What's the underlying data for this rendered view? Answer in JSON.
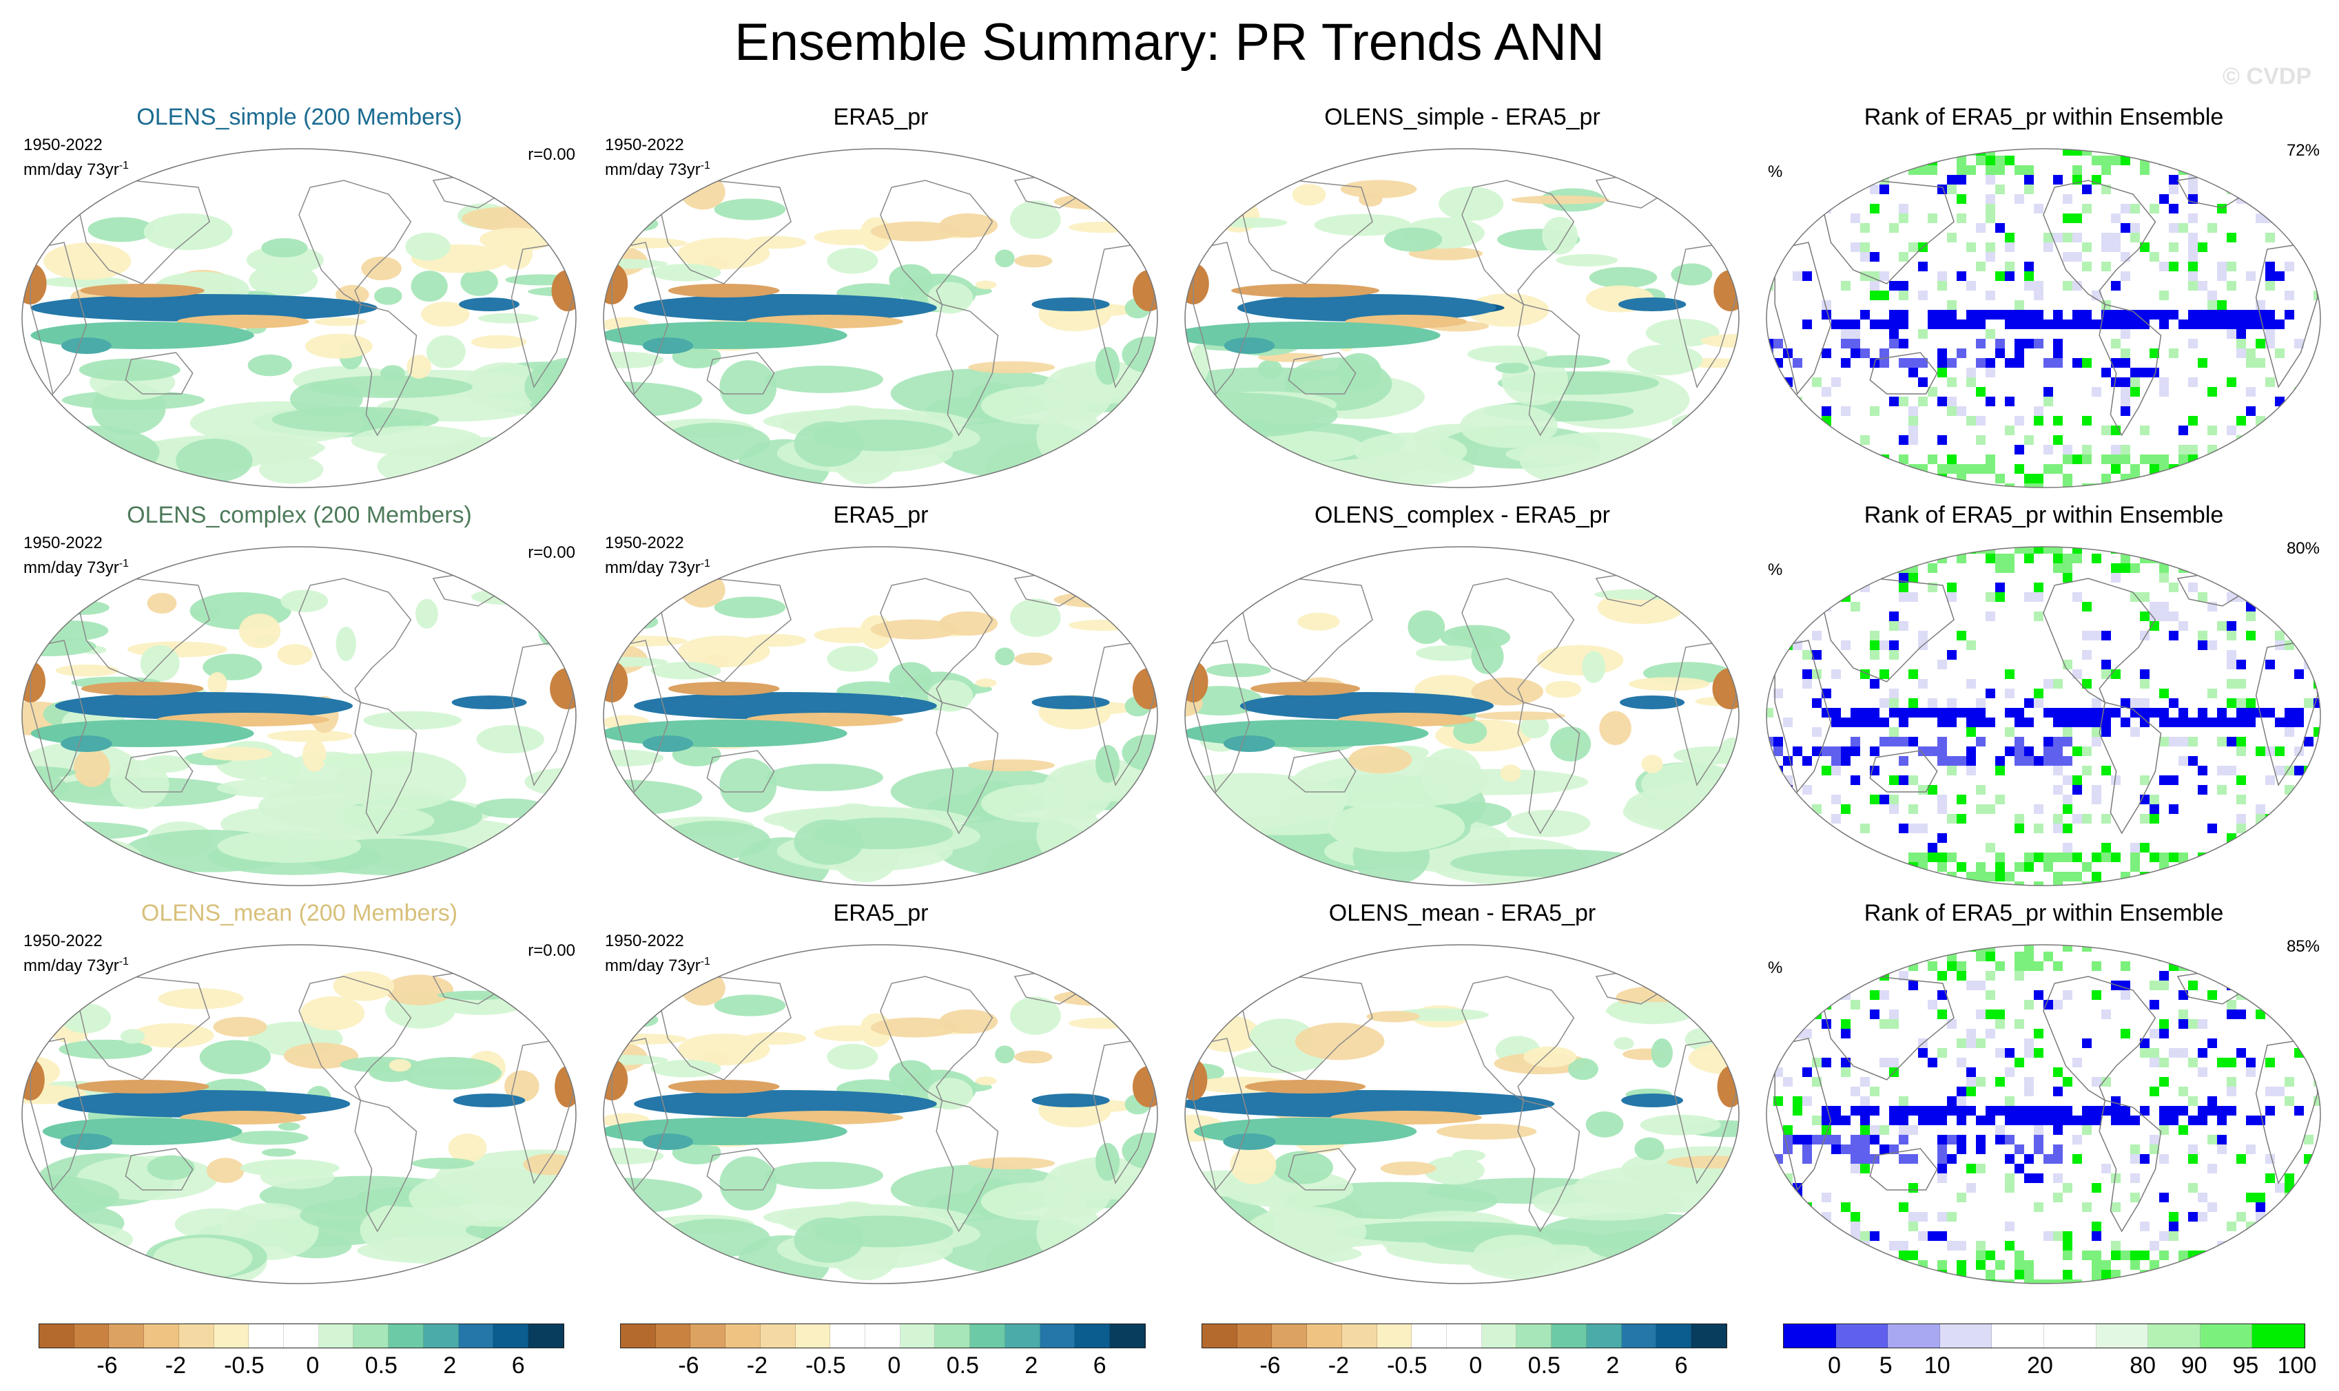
{
  "title": "Ensemble Summary: PR Trends ANN",
  "watermark": "© CVDP",
  "colors": {
    "olens_simple": "#1a6b91",
    "olens_complex": "#4d7a5a",
    "olens_mean": "#d8c07a",
    "land_outline": "#888888",
    "diverging_palette": [
      "#b46a2d",
      "#c98240",
      "#dca262",
      "#efc382",
      "#f4d9a3",
      "#fbf0c2",
      "#ffffff",
      "#ffffff",
      "#d3f5d3",
      "#a6e6b8",
      "#6ccaa6",
      "#4aaba8",
      "#2477a8",
      "#0b5c8f",
      "#083d5e"
    ],
    "rank_palette": [
      "#0000ee",
      "#6060ee",
      "#a8a8f2",
      "#dcdcf6",
      "#ffffff",
      "#ffffff",
      "#e3f8e3",
      "#b3f2b3",
      "#7cf07c",
      "#00ee00"
    ]
  },
  "panels": [
    {
      "title": "OLENS_simple (200 Members)",
      "title_color_key": "olens_simple",
      "period": "1950-2022",
      "units": "mm/day 73yr",
      "unit_sup": "-1",
      "corr": "r=0.00",
      "kind": "trend",
      "pattern": 1
    },
    {
      "title": "ERA5_pr",
      "title_color_key": null,
      "period": "1950-2022",
      "units": "mm/day 73yr",
      "unit_sup": "-1",
      "corr": "",
      "kind": "trend",
      "pattern": 2
    },
    {
      "title": "OLENS_simple - ERA5_pr",
      "title_color_key": null,
      "period": "",
      "units": "",
      "unit_sup": "",
      "corr": "",
      "kind": "trend",
      "pattern": 3
    },
    {
      "title": "Rank of ERA5_pr within Ensemble",
      "title_color_key": null,
      "period": "",
      "units": "%",
      "unit_sup": "",
      "corr": "72%",
      "kind": "rank",
      "pattern": 4
    },
    {
      "title": "OLENS_complex (200 Members)",
      "title_color_key": "olens_complex",
      "period": "1950-2022",
      "units": "mm/day 73yr",
      "unit_sup": "-1",
      "corr": "r=0.00",
      "kind": "trend",
      "pattern": 5
    },
    {
      "title": "ERA5_pr",
      "title_color_key": null,
      "period": "1950-2022",
      "units": "mm/day 73yr",
      "unit_sup": "-1",
      "corr": "",
      "kind": "trend",
      "pattern": 2
    },
    {
      "title": "OLENS_complex - ERA5_pr",
      "title_color_key": null,
      "period": "",
      "units": "",
      "unit_sup": "",
      "corr": "",
      "kind": "trend",
      "pattern": 6
    },
    {
      "title": "Rank of ERA5_pr within Ensemble",
      "title_color_key": null,
      "period": "",
      "units": "%",
      "unit_sup": "",
      "corr": "80%",
      "kind": "rank",
      "pattern": 7
    },
    {
      "title": "OLENS_mean (200 Members)",
      "title_color_key": "olens_mean",
      "period": "1950-2022",
      "units": "mm/day 73yr",
      "unit_sup": "-1",
      "corr": "r=0.00",
      "kind": "trend",
      "pattern": 8
    },
    {
      "title": "ERA5_pr",
      "title_color_key": null,
      "period": "1950-2022",
      "units": "mm/day 73yr",
      "unit_sup": "-1",
      "corr": "",
      "kind": "trend",
      "pattern": 2
    },
    {
      "title": "OLENS_mean - ERA5_pr",
      "title_color_key": null,
      "period": "",
      "units": "",
      "unit_sup": "",
      "corr": "",
      "kind": "trend",
      "pattern": 9
    },
    {
      "title": "Rank of ERA5_pr within Ensemble",
      "title_color_key": null,
      "period": "",
      "units": "%",
      "unit_sup": "",
      "corr": "85%",
      "kind": "rank",
      "pattern": 10
    }
  ],
  "colorbars": [
    {
      "kind": "trend",
      "labels": [
        "-6",
        "-2",
        "-0.5",
        "0",
        "0.5",
        "2",
        "6"
      ]
    },
    {
      "kind": "trend",
      "labels": [
        "-6",
        "-2",
        "-0.5",
        "0",
        "0.5",
        "2",
        "6"
      ]
    },
    {
      "kind": "trend",
      "labels": [
        "-6",
        "-2",
        "-0.5",
        "0",
        "0.5",
        "2",
        "6"
      ]
    },
    {
      "kind": "rank",
      "labels": [
        "0",
        "5",
        "10",
        "20",
        "80",
        "90",
        "95",
        "100"
      ]
    }
  ]
}
